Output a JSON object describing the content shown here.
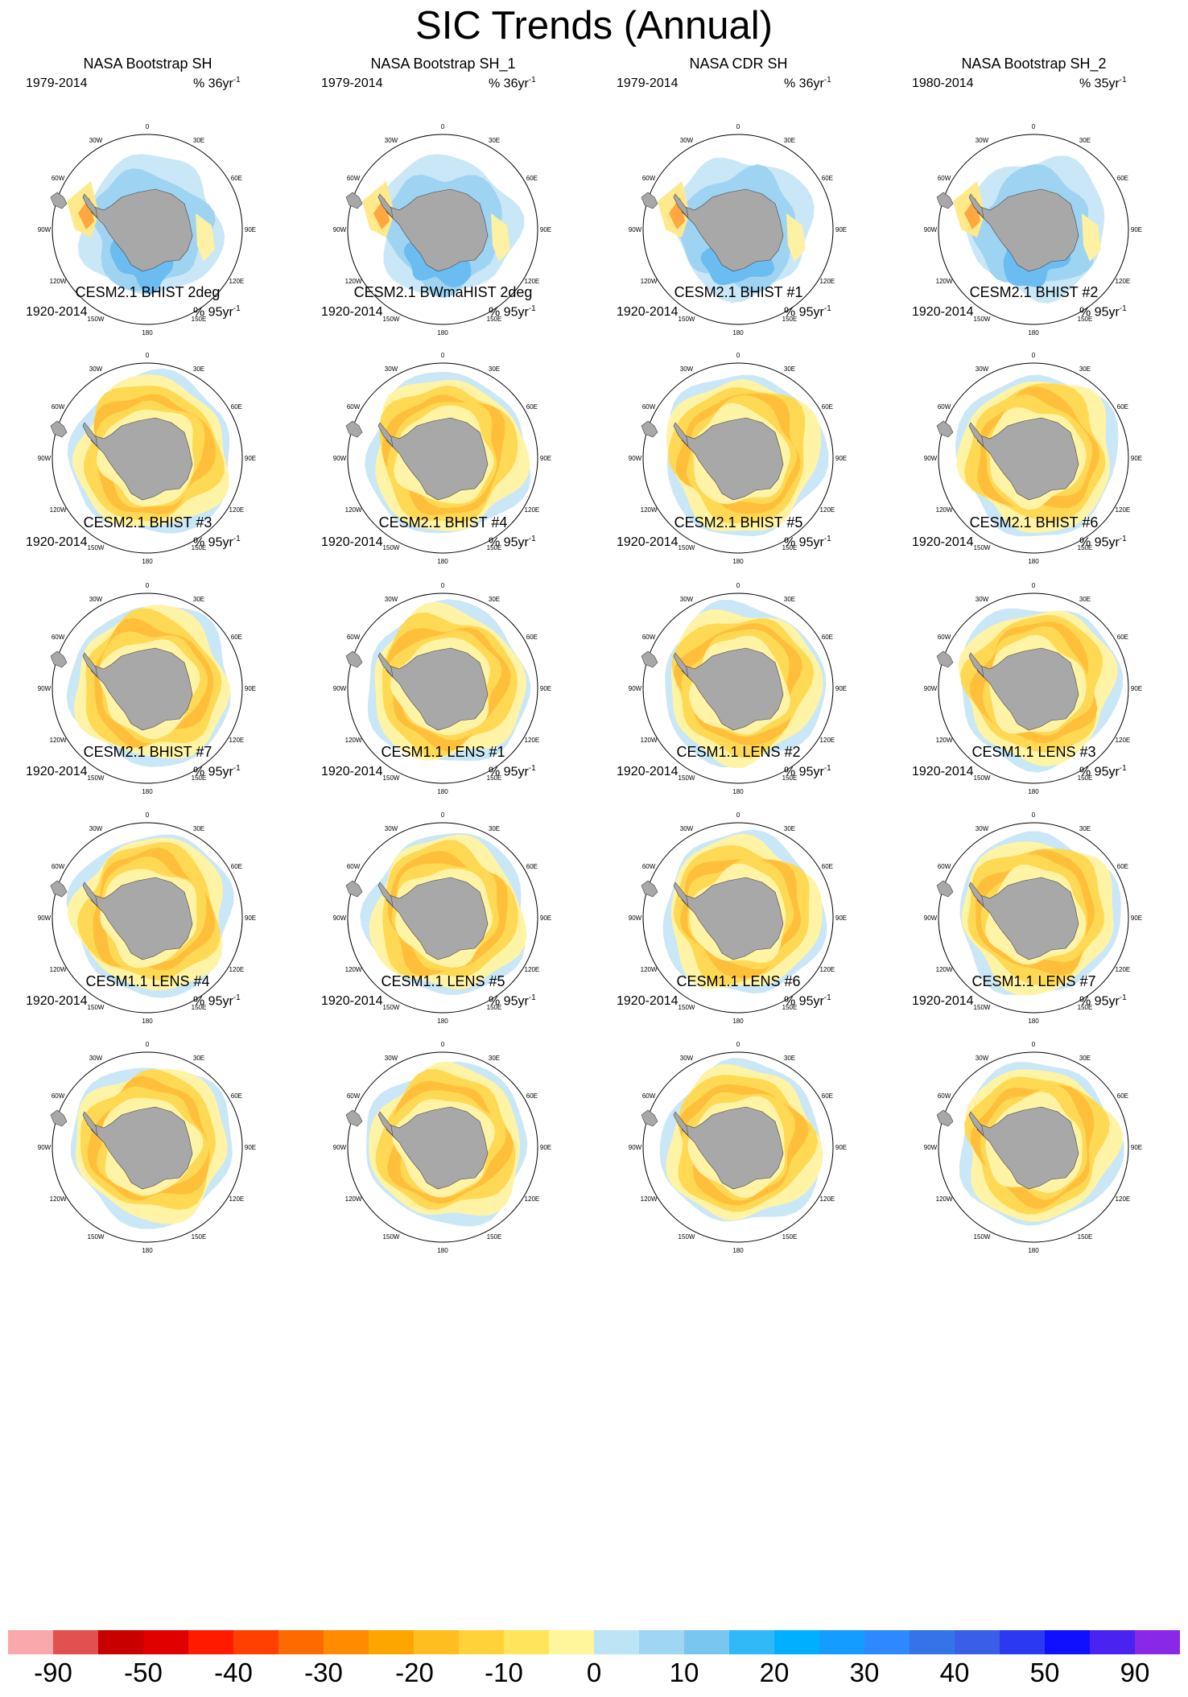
{
  "title": "SIC Trends (Annual)",
  "units_prefix": "%",
  "units_suffix": "yr",
  "units_exponent": "-1",
  "longitude_labels": [
    "0",
    "30E",
    "60E",
    "90E",
    "120E",
    "150E",
    "180",
    "150W",
    "120W",
    "90W",
    "60W",
    "30W"
  ],
  "colors": {
    "land": "#a8a8a8",
    "map_circle": "#000000"
  },
  "chart_data": {
    "type": "heatmap",
    "projection": "south polar stereographic",
    "variable": "sea ice concentration trend",
    "panels": [
      {
        "title": "NASA Bootstrap SH",
        "period": "1979-2014",
        "units_value": "36",
        "pattern": "obs"
      },
      {
        "title": "NASA Bootstrap SH_1",
        "period": "1979-2014",
        "units_value": "36",
        "pattern": "obs"
      },
      {
        "title": "NASA CDR SH",
        "period": "1979-2014",
        "units_value": "36",
        "pattern": "obs"
      },
      {
        "title": "NASA Bootstrap SH_2",
        "period": "1980-2014",
        "units_value": "35",
        "pattern": "obs"
      },
      {
        "title": "CESM2.1 BHIST 2deg",
        "period": "1920-2014",
        "units_value": "95",
        "pattern": "model"
      },
      {
        "title": "CESM2.1 BWmaHIST 2deg",
        "period": "1920-2014",
        "units_value": "95",
        "pattern": "model"
      },
      {
        "title": "CESM2.1 BHIST #1",
        "period": "1920-2014",
        "units_value": "95",
        "pattern": "model"
      },
      {
        "title": "CESM2.1 BHIST #2",
        "period": "1920-2014",
        "units_value": "95",
        "pattern": "model"
      },
      {
        "title": "CESM2.1 BHIST #3",
        "period": "1920-2014",
        "units_value": "95",
        "pattern": "model"
      },
      {
        "title": "CESM2.1 BHIST #4",
        "period": "1920-2014",
        "units_value": "95",
        "pattern": "model"
      },
      {
        "title": "CESM2.1 BHIST #5",
        "period": "1920-2014",
        "units_value": "95",
        "pattern": "model"
      },
      {
        "title": "CESM2.1 BHIST #6",
        "period": "1920-2014",
        "units_value": "95",
        "pattern": "model"
      },
      {
        "title": "CESM2.1 BHIST #7",
        "period": "1920-2014",
        "units_value": "95",
        "pattern": "model"
      },
      {
        "title": "CESM1.1 LENS #1",
        "period": "1920-2014",
        "units_value": "95",
        "pattern": "model"
      },
      {
        "title": "CESM1.1 LENS #2",
        "period": "1920-2014",
        "units_value": "95",
        "pattern": "model"
      },
      {
        "title": "CESM1.1 LENS #3",
        "period": "1920-2014",
        "units_value": "95",
        "pattern": "model"
      },
      {
        "title": "CESM1.1 LENS #4",
        "period": "1920-2014",
        "units_value": "95",
        "pattern": "model"
      },
      {
        "title": "CESM1.1 LENS #5",
        "period": "1920-2014",
        "units_value": "95",
        "pattern": "model"
      },
      {
        "title": "CESM1.1 LENS #6",
        "period": "1920-2014",
        "units_value": "95",
        "pattern": "model"
      },
      {
        "title": "CESM1.1 LENS #7",
        "period": "1920-2014",
        "units_value": "95",
        "pattern": "model"
      }
    ],
    "colorbar": {
      "tick_labels": [
        "-90",
        "-50",
        "-40",
        "-30",
        "-20",
        "-10",
        "0",
        "10",
        "20",
        "30",
        "40",
        "50",
        "90"
      ],
      "colors": [
        "#f9a8ac",
        "#e35050",
        "#c80000",
        "#e00000",
        "#ff1a00",
        "#ff4000",
        "#ff6a00",
        "#ff8c00",
        "#ffa500",
        "#ffbe20",
        "#ffd23a",
        "#ffe45c",
        "#fff59a",
        "#bde4f5",
        "#9fd6f3",
        "#79c7f1",
        "#30b8f7",
        "#00b0ff",
        "#159cff",
        "#2e88ff",
        "#3574e8",
        "#3a5ee8",
        "#2b3af0",
        "#1010ff",
        "#4a23f0",
        "#8a28e8"
      ]
    }
  }
}
